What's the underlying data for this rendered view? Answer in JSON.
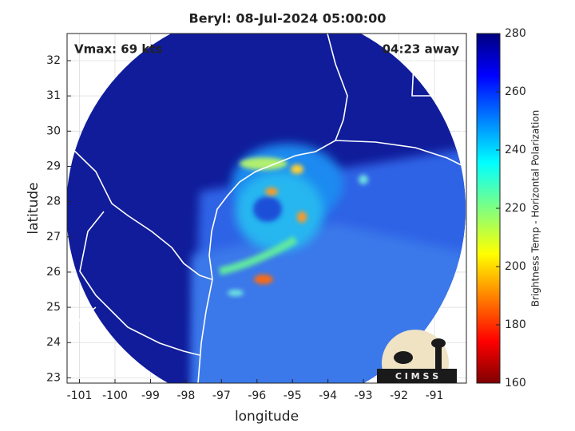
{
  "chart_data": {
    "type": "map",
    "title": "Beryl: 08-Jul-2024 05:00:00",
    "annotations": [
      "Vmax: 69 kts",
      "04:23 away"
    ],
    "xlabel": "longitude",
    "ylabel": "latitude",
    "xlim": [
      -101.35,
      -90.1
    ],
    "ylim": [
      22.85,
      32.77
    ],
    "xticks": [
      -101,
      -100,
      -99,
      -98,
      -97,
      -96,
      -95,
      -94,
      -93,
      -92,
      -91
    ],
    "yticks": [
      23,
      24,
      25,
      26,
      27,
      28,
      29,
      30,
      31,
      32
    ],
    "grid": true,
    "colorbar": {
      "label": "Brightness Temp - Horizontal Polarization",
      "lim": [
        160,
        280
      ],
      "ticks": [
        160,
        180,
        200,
        220,
        240,
        260,
        280
      ]
    },
    "logo_text": "C I M S S"
  }
}
